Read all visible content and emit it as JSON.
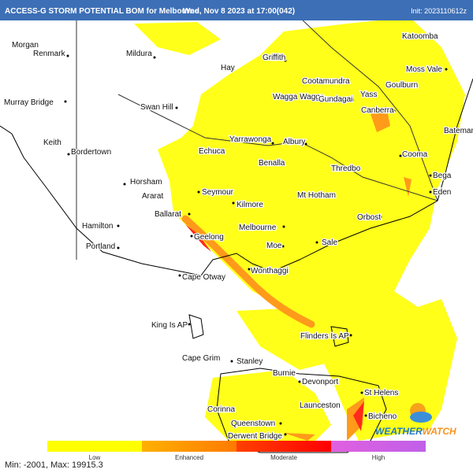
{
  "header": {
    "title": "ACCESS-G STORM POTENTIAL BOM for Melbourne",
    "valid": "Wed, Nov 8 2023 at 17:00(042)",
    "init": "Init: 2023110612z"
  },
  "places": [
    "Morgan",
    "Renmark",
    "Mildura",
    "Hay",
    "Griffith",
    "Katoomba",
    "Moss Vale",
    "Goulburn",
    "Cootamundra",
    "Yass",
    "Wagga Wagga",
    "Gundagai",
    "Murray Bridge",
    "Swan Hill",
    "Canberra",
    "Bateman",
    "Keith",
    "Bordertown",
    "Echuca",
    "Yarrawonga",
    "Albury",
    "Benalla",
    "Thredbo",
    "Cooma",
    "Bega",
    "Horsham",
    "Ararat",
    "Seymour",
    "Mt Hotham",
    "Eden",
    "Kilmore",
    "Hamilton",
    "Ballarat",
    "Melbourne",
    "Orbost",
    "Geelong",
    "Portland",
    "Moe",
    "Sale",
    "Wonthaggi",
    "Cape Otway",
    "King Is AP",
    "Flinders Is AP",
    "Cape Grim",
    "Stanley",
    "Burnie",
    "Devonport",
    "St Helens",
    "Launceston",
    "Bicheno",
    "Corinna",
    "Queenstown",
    "Derwent Bridge"
  ],
  "legend": {
    "labels": [
      "Low",
      "Enhanced",
      "Moderate",
      "High"
    ]
  },
  "footer": {
    "stats": "Min: -2001, Max: 19915.3"
  },
  "logo": {
    "parts": [
      "WEATHER",
      "WATCH"
    ]
  }
}
